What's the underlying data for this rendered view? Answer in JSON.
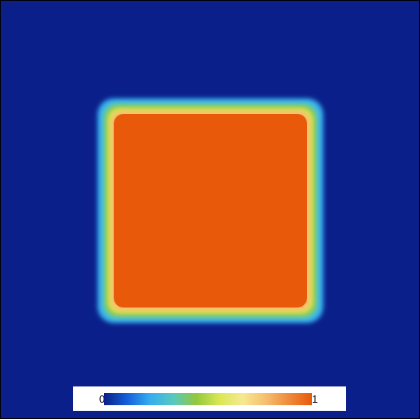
{
  "field": {
    "background_color": "#0b1f8a",
    "square_color": "#e85a0a",
    "colormap": [
      "#0b1f8a",
      "#1560d8",
      "#36aef0",
      "#58c8c0",
      "#93c83c",
      "#d9e855",
      "#f7e890",
      "#f5bf6e",
      "#ee8a3c",
      "#e85a0a"
    ]
  },
  "colorbar": {
    "min_label": "0",
    "max_label": "1"
  }
}
